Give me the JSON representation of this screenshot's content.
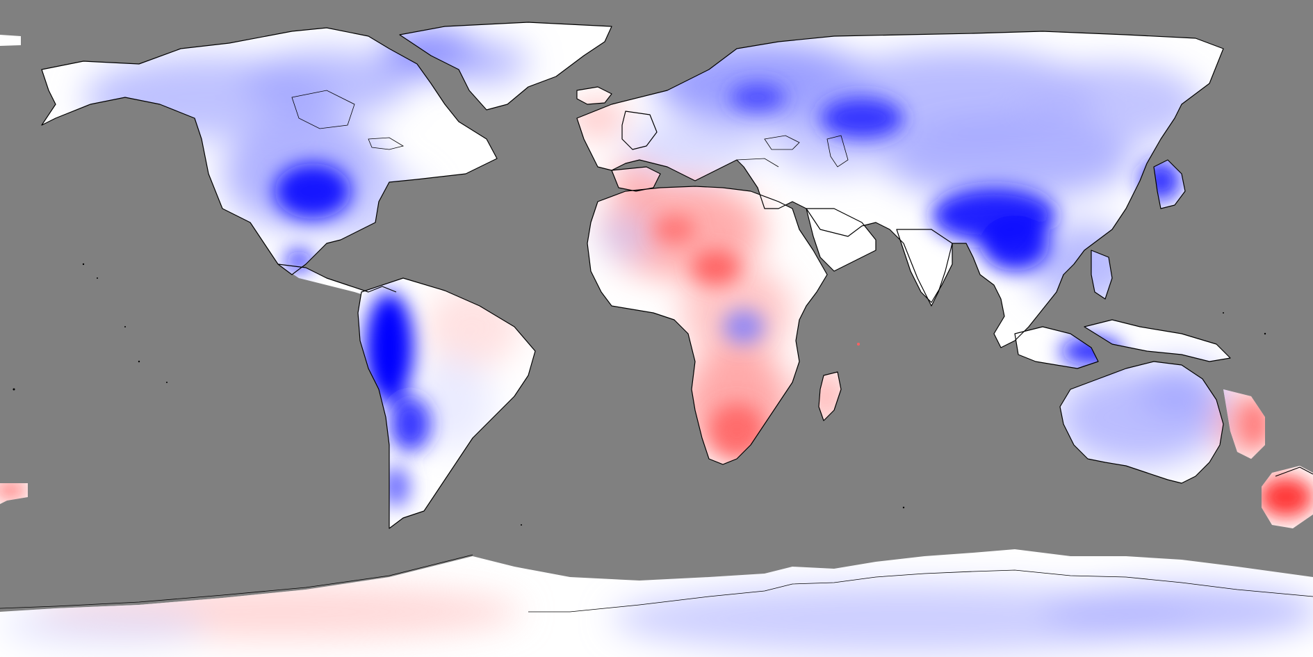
{
  "map": {
    "projection": "equirectangular",
    "background_color": "#808080",
    "coastline_color": "#000000",
    "colorscale": {
      "type": "diverging",
      "negative_color": "#0000ff",
      "neutral_color": "#ffffff",
      "positive_color": "#ff3333"
    },
    "legend": null,
    "title": null
  }
}
